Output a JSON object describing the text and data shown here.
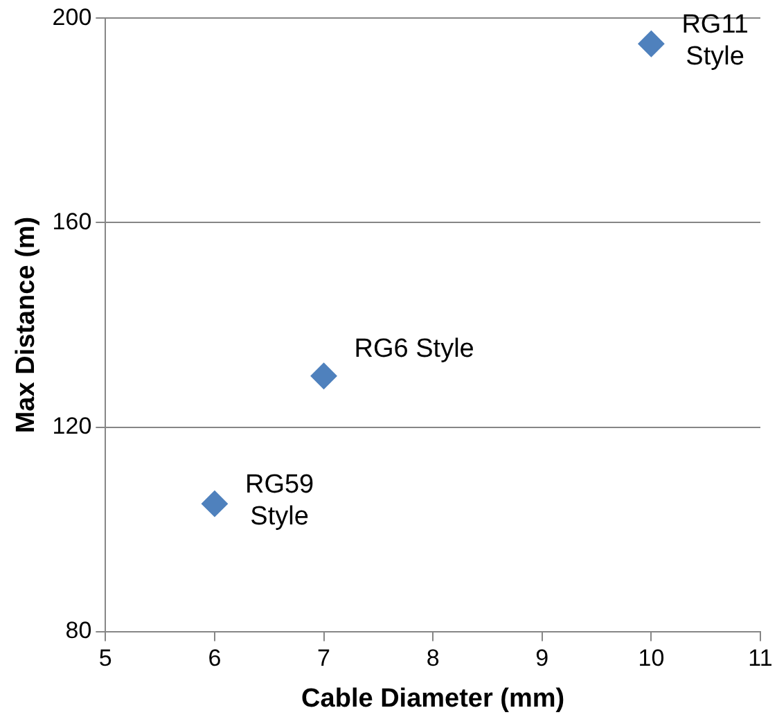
{
  "chart_data": {
    "type": "scatter",
    "xlabel": "Cable Diameter (mm)",
    "ylabel": "Max Distance (m)",
    "x": [
      6,
      7,
      10
    ],
    "series": [
      {
        "color": "#4f81bd",
        "values": [
          105,
          130,
          195
        ]
      }
    ],
    "xlim": [
      5,
      11
    ],
    "xticks": [
      5,
      6,
      7,
      8,
      9,
      10,
      11
    ],
    "ylim": [
      80,
      200
    ],
    "yticks": [
      80,
      120,
      160,
      200
    ],
    "grid": "y",
    "legend": false,
    "marker": "diamond",
    "annotations": [
      {
        "text": "RG59\nStyle",
        "x": 6,
        "y": 105
      },
      {
        "text": "RG6 Style",
        "x": 7,
        "y": 130
      },
      {
        "text": "RG11\nStyle",
        "x": 10,
        "y": 195
      }
    ]
  }
}
